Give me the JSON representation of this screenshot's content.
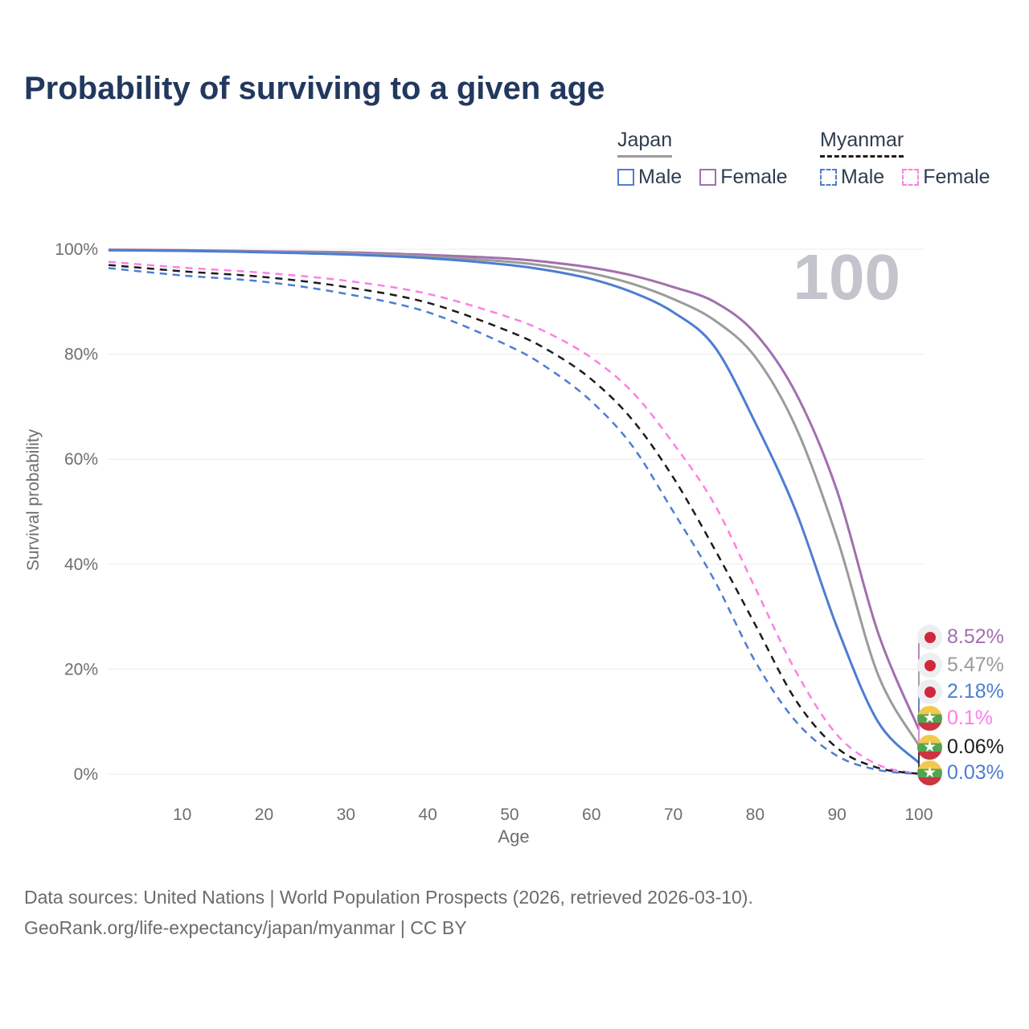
{
  "title": "Probability of surviving to a given age",
  "watermark": {
    "text": "100"
  },
  "legend": {
    "groups": [
      {
        "label": "Japan",
        "line_style": "solid",
        "underline_color": "#9B9B9B",
        "items": [
          {
            "label": "Male",
            "color": "#4D7DD2"
          },
          {
            "label": "Female",
            "color": "#A26FAF"
          }
        ]
      },
      {
        "label": "Myanmar",
        "line_style": "dashed",
        "underline_color": "#1C1C1C",
        "items": [
          {
            "label": "Male",
            "color": "#4D7DD2"
          },
          {
            "label": "Female",
            "color": "#FC80E5"
          }
        ]
      }
    ]
  },
  "chart_data": {
    "type": "line",
    "title": "Probability of surviving to a given age",
    "xlabel": "Age",
    "ylabel": "Survival probability",
    "xlim": [
      1,
      100
    ],
    "ylim": [
      0,
      100
    ],
    "xticks": [
      10,
      20,
      30,
      40,
      50,
      60,
      70,
      80,
      90,
      100
    ],
    "yticks": [
      0,
      20,
      40,
      60,
      80,
      100
    ],
    "ytick_labels": [
      "0%",
      "20%",
      "40%",
      "60%",
      "80%",
      "100%"
    ],
    "grid": "horizontal",
    "x": [
      1,
      10,
      20,
      30,
      40,
      50,
      55,
      60,
      65,
      70,
      75,
      80,
      85,
      90,
      95,
      100
    ],
    "series": [
      {
        "name": "Japan Female",
        "country": "Japan",
        "sex": "Female",
        "color": "#A26FAF",
        "dash": "solid",
        "flag": "japan",
        "end_label": "8.52%",
        "values": [
          99.9,
          99.8,
          99.6,
          99.4,
          98.9,
          98.2,
          97.5,
          96.5,
          95.0,
          92.8,
          90.0,
          84.0,
          72.5,
          54.0,
          27.0,
          8.52
        ]
      },
      {
        "name": "Japan",
        "country": "Japan",
        "sex": "Both sexes",
        "color": "#9B9B9B",
        "dash": "solid",
        "flag": "japan",
        "end_label": "5.47%",
        "values": [
          99.8,
          99.7,
          99.5,
          99.2,
          98.6,
          97.6,
          96.7,
          95.4,
          93.4,
          90.5,
          86.5,
          79.5,
          66.0,
          45.0,
          19.0,
          5.47
        ]
      },
      {
        "name": "Japan Male",
        "country": "Japan",
        "sex": "Male",
        "color": "#4D7DD2",
        "dash": "solid",
        "flag": "japan",
        "end_label": "2.18%",
        "values": [
          99.8,
          99.7,
          99.4,
          99.0,
          98.3,
          97.0,
          95.9,
          94.3,
          91.8,
          88.0,
          81.5,
          67.0,
          50.0,
          28.0,
          10.0,
          2.18
        ]
      },
      {
        "name": "Myanmar Female",
        "country": "Myanmar",
        "sex": "Female",
        "color": "#FC80E5",
        "dash": "dashed",
        "flag": "myanmar",
        "end_label": "0.1%",
        "values": [
          97.6,
          96.5,
          95.5,
          94.0,
          91.5,
          87.0,
          83.8,
          79.3,
          72.8,
          63.0,
          51.5,
          35.5,
          19.5,
          7.5,
          1.8,
          0.1
        ]
      },
      {
        "name": "Myanmar",
        "country": "Myanmar",
        "sex": "Both sexes",
        "color": "#1C1C1C",
        "dash": "dashed",
        "flag": "myanmar",
        "end_label": "0.06%",
        "values": [
          97.0,
          95.8,
          94.7,
          92.8,
          89.8,
          84.3,
          80.5,
          75.2,
          67.5,
          56.5,
          43.0,
          28.5,
          14.0,
          5.0,
          1.2,
          0.06
        ]
      },
      {
        "name": "Myanmar Male",
        "country": "Myanmar",
        "sex": "Male",
        "color": "#4D7DD2",
        "dash": "dashed",
        "flag": "myanmar",
        "end_label": "0.03%",
        "values": [
          96.4,
          95.0,
          93.8,
          91.5,
          88.0,
          81.5,
          77.0,
          71.0,
          62.5,
          50.0,
          37.0,
          21.5,
          10.0,
          3.5,
          0.8,
          0.03
        ]
      }
    ]
  },
  "footer": {
    "line1": "Data sources: United Nations | World Population Prospects (2026, retrieved 2026-03-10).",
    "line2": "GeoRank.org/life-expectancy/japan/myanmar | CC BY"
  },
  "colors": {
    "title": "#22385E",
    "axis_text": "#6E6E6E",
    "gridline": "#EBEBEB",
    "watermark": "#C3C4CC",
    "footer_text": "#6B6B6B"
  }
}
